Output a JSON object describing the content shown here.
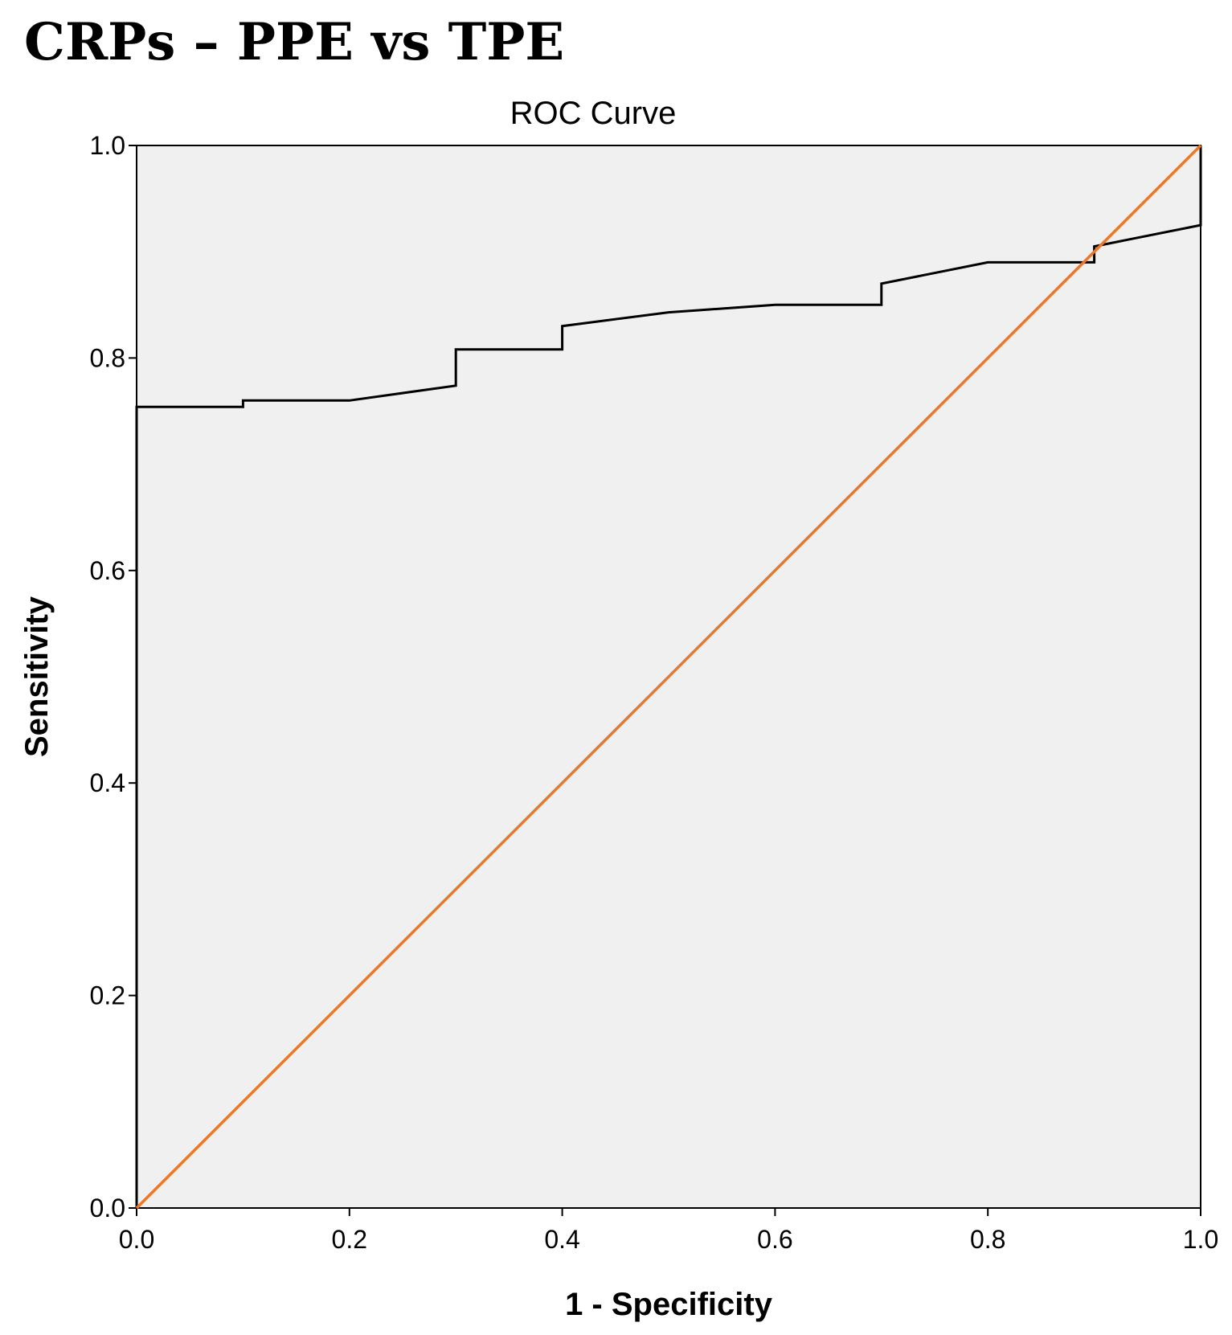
{
  "figure_heading": "CRPs – PPE vs TPE",
  "chart_data": {
    "type": "line",
    "title": "ROC Curve",
    "xlabel": "1 - Specificity",
    "ylabel": "Sensitivity",
    "xlim": [
      0,
      1
    ],
    "ylim": [
      0,
      1
    ],
    "x_ticks": [
      "0.0",
      "0.2",
      "0.4",
      "0.6",
      "0.8",
      "1.0"
    ],
    "y_ticks": [
      "0.0",
      "0.2",
      "0.4",
      "0.6",
      "0.8",
      "1.0"
    ],
    "grid": false,
    "legend": "none",
    "plot_background": "#f0f0f0",
    "series": [
      {
        "color": "#000000",
        "points": [
          [
            0.0,
            0.0
          ],
          [
            0.0,
            0.754
          ],
          [
            0.1,
            0.754
          ],
          [
            0.1,
            0.76
          ],
          [
            0.2,
            0.76
          ],
          [
            0.3,
            0.774
          ],
          [
            0.3,
            0.808
          ],
          [
            0.4,
            0.808
          ],
          [
            0.4,
            0.83
          ],
          [
            0.5,
            0.843
          ],
          [
            0.6,
            0.85
          ],
          [
            0.7,
            0.85
          ],
          [
            0.7,
            0.87
          ],
          [
            0.8,
            0.89
          ],
          [
            0.9,
            0.89
          ],
          [
            0.9,
            0.905
          ],
          [
            1.0,
            0.925
          ],
          [
            1.0,
            1.0
          ]
        ]
      },
      {
        "color": "#e8782a",
        "points": [
          [
            0.0,
            0.0
          ],
          [
            1.0,
            1.0
          ]
        ]
      }
    ]
  }
}
